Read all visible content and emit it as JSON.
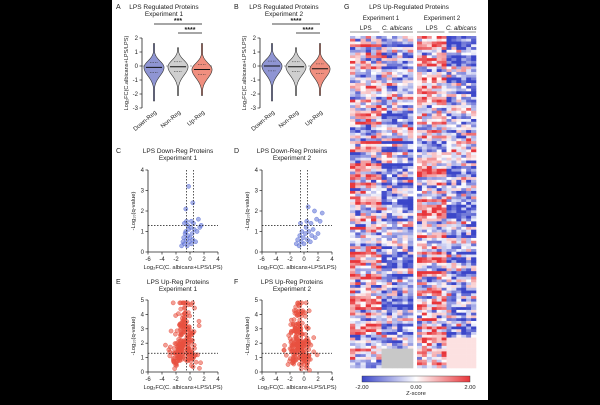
{
  "panels": {
    "A": {
      "letter": "A",
      "title": [
        "LPS  Regulated Proteins",
        "Experiment 1"
      ]
    },
    "B": {
      "letter": "B",
      "title": [
        "LPS  Regulated Proteins",
        "Experiment 2"
      ]
    },
    "C": {
      "letter": "C",
      "title": [
        "LPS Down-Reg Proteins",
        "Experiment 1"
      ]
    },
    "D": {
      "letter": "D",
      "title": [
        "LPS Down-Reg Proteins",
        "Experiment 2"
      ]
    },
    "E": {
      "letter": "E",
      "title": [
        "LPS Up-Reg Proteins",
        "Experiment 1"
      ]
    },
    "F": {
      "letter": "F",
      "title": [
        "LPS Up-Reg Proteins",
        "Experiment 2"
      ]
    },
    "G": {
      "letter": "G",
      "title": "LPS Up-Regulated Proteins",
      "exp1": "Experiment 1",
      "exp2": "Experiment 2",
      "col_lps": "LPS",
      "col_ca": "C. albicans",
      "colorbar_label": "Z-score",
      "colorbar_ticks": [
        "-2.00",
        "0.00",
        "2.00"
      ]
    }
  },
  "chart_data": [
    {
      "panel": "A",
      "type": "violin",
      "categories": [
        "Down-Reg",
        "Non-Reg",
        "Up-Reg"
      ],
      "ylabel": "Log₂FC(C.albicans+LPS/LPS)",
      "ylim": [
        -3,
        2
      ],
      "yticks": [
        "-3",
        "-2",
        "-1",
        "0",
        "1",
        "2"
      ],
      "medians": [
        -0.1,
        -0.05,
        -0.25
      ],
      "colors": [
        "#8f95d3",
        "#cfcfcf",
        "#f08f7f"
      ],
      "significance": [
        {
          "between": [
            0,
            2
          ],
          "label": "***"
        },
        {
          "between": [
            1,
            2
          ],
          "label": "****"
        }
      ]
    },
    {
      "panel": "B",
      "type": "violin",
      "categories": [
        "Down-Reg",
        "Non-Reg",
        "Up-Reg"
      ],
      "ylabel": "Log₂FC(C.albicans+LPS/LPS)",
      "ylim": [
        -3,
        2
      ],
      "yticks": [
        "-3",
        "-2",
        "-1",
        "0",
        "1",
        "2"
      ],
      "medians": [
        0.0,
        -0.05,
        -0.2
      ],
      "colors": [
        "#8f95d3",
        "#cfcfcf",
        "#f08f7f"
      ],
      "significance": [
        {
          "between": [
            0,
            2
          ],
          "label": "****"
        },
        {
          "between": [
            1,
            2
          ],
          "label": "****"
        }
      ]
    },
    {
      "panel": "C",
      "type": "scatter",
      "color": "#5b6fd6",
      "xlabel": "Log₂FC(C. albicans+LPS/LPS)",
      "ylabel": "-Log₁₀(q-value)",
      "xlim": [
        -6,
        4
      ],
      "ylim": [
        0,
        4
      ],
      "xticks": [
        "-6",
        "-4",
        "-2",
        "0",
        "2",
        "4"
      ],
      "yticks": [
        "0",
        "1",
        "2",
        "3",
        "4"
      ],
      "threshold_y": 1.3,
      "threshold_x": [
        -0.5,
        0.5
      ],
      "points": [
        [
          -1.2,
          0.3
        ],
        [
          -1.0,
          0.5
        ],
        [
          -0.9,
          0.7
        ],
        [
          -0.8,
          0.4
        ],
        [
          -0.7,
          0.9
        ],
        [
          -0.6,
          1.0
        ],
        [
          -0.5,
          0.6
        ],
        [
          -0.4,
          0.3
        ],
        [
          -0.3,
          0.8
        ],
        [
          -0.2,
          1.1
        ],
        [
          -0.1,
          0.5
        ],
        [
          0.0,
          0.7
        ],
        [
          0.1,
          1.2
        ],
        [
          0.2,
          0.4
        ],
        [
          0.3,
          0.9
        ],
        [
          0.4,
          0.6
        ],
        [
          0.6,
          1.1
        ],
        [
          0.8,
          0.5
        ],
        [
          1.0,
          1.0
        ],
        [
          1.4,
          1.2
        ],
        [
          -0.8,
          1.4
        ],
        [
          -0.5,
          1.5
        ],
        [
          -0.3,
          1.3
        ],
        [
          0.2,
          1.5
        ],
        [
          0.5,
          1.4
        ],
        [
          1.2,
          1.6
        ],
        [
          -0.6,
          2.1
        ],
        [
          -0.2,
          3.2
        ],
        [
          0.4,
          2.4
        ],
        [
          1.6,
          1.3
        ]
      ]
    },
    {
      "panel": "D",
      "type": "scatter",
      "color": "#5b6fd6",
      "xlabel": "Log₂FC(C. albicans+LPS/LPS)",
      "ylabel": "-Log₁₀(q-value)",
      "xlim": [
        -6,
        4
      ],
      "ylim": [
        0,
        4
      ],
      "xticks": [
        "-6",
        "-4",
        "-2",
        "0",
        "2",
        "4"
      ],
      "yticks": [
        "0",
        "1",
        "2",
        "3",
        "4"
      ],
      "threshold_y": 1.3,
      "threshold_x": [
        -0.5,
        0.5
      ],
      "points": [
        [
          -1.1,
          0.4
        ],
        [
          -0.9,
          0.6
        ],
        [
          -0.7,
          0.3
        ],
        [
          -0.6,
          0.8
        ],
        [
          -0.4,
          0.5
        ],
        [
          -0.3,
          1.0
        ],
        [
          -0.1,
          0.7
        ],
        [
          0.0,
          0.4
        ],
        [
          0.2,
          0.9
        ],
        [
          0.3,
          1.2
        ],
        [
          0.5,
          0.6
        ],
        [
          0.7,
          1.0
        ],
        [
          0.9,
          0.5
        ],
        [
          1.1,
          0.8
        ],
        [
          1.3,
          1.1
        ],
        [
          1.6,
          0.7
        ],
        [
          2.0,
          0.9
        ],
        [
          -0.5,
          1.4
        ],
        [
          0.4,
          1.5
        ],
        [
          1.0,
          1.4
        ],
        [
          1.8,
          1.6
        ],
        [
          2.3,
          1.5
        ],
        [
          1.5,
          2.0
        ],
        [
          2.6,
          1.9
        ],
        [
          0.6,
          2.2
        ]
      ]
    },
    {
      "panel": "E",
      "type": "scatter",
      "color": "#e8503f",
      "xlabel": "Log₂FC(C. albicans+LPS/LPS)",
      "ylabel": "-Log₁₀(q-value)",
      "xlim": [
        -6,
        4
      ],
      "ylim": [
        0,
        5
      ],
      "xticks": [
        "-6",
        "-4",
        "-2",
        "0",
        "2",
        "4"
      ],
      "yticks": [
        "0",
        "1",
        "2",
        "3",
        "4",
        "5"
      ],
      "threshold_y": 1.3,
      "threshold_x": [
        -0.5,
        0.5
      ],
      "cloud": {
        "n": 220,
        "x_center": -0.8,
        "x_spread": 0.9,
        "y_max": 4.8,
        "seed": 11
      }
    },
    {
      "panel": "F",
      "type": "scatter",
      "color": "#e8503f",
      "xlabel": "Log₂FC(C. albicans+LPS/LPS)",
      "ylabel": "-Log₁₀(q-value)",
      "xlim": [
        -6,
        4
      ],
      "ylim": [
        0,
        5
      ],
      "xticks": [
        "-6",
        "-4",
        "-2",
        "0",
        "2",
        "4"
      ],
      "yticks": [
        "0",
        "1",
        "2",
        "3",
        "4",
        "5"
      ],
      "threshold_y": 1.3,
      "threshold_x": [
        -0.5,
        0.5
      ],
      "cloud": {
        "n": 220,
        "x_center": -0.7,
        "x_spread": 0.8,
        "y_max": 4.8,
        "seed": 29
      }
    },
    {
      "panel": "G",
      "type": "heatmap",
      "columns": [
        "LPS",
        "C. albicans"
      ],
      "experiments": [
        "Experiment 1",
        "Experiment 2"
      ],
      "rows": 120,
      "zlim": [
        -2,
        2
      ],
      "colors": {
        "low": "#3b46c9",
        "mid": "#ffffff",
        "high": "#e8353a"
      },
      "seed": 7
    }
  ]
}
